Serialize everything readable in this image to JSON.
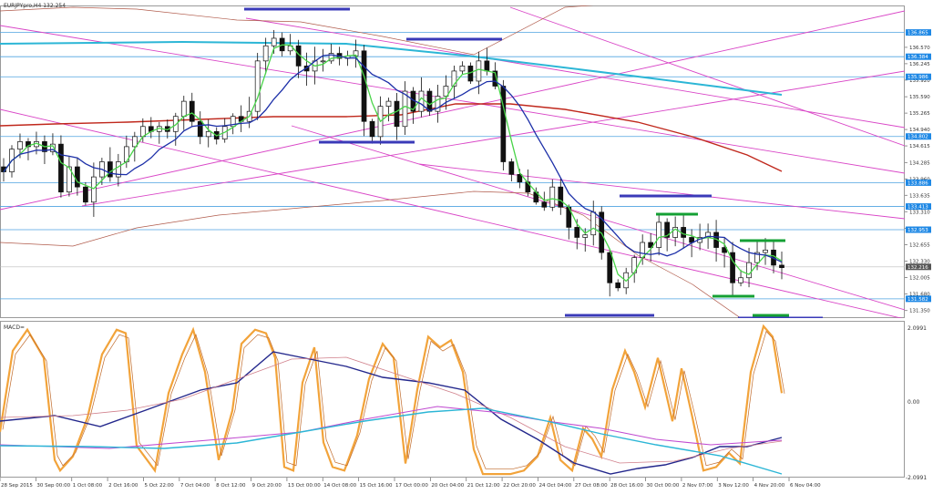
{
  "chart_data": [
    {
      "type": "candlestick",
      "title": "EURJPYpro,H4  132.254",
      "price_axis": {
        "ylim": [
          131.2,
          137.4
        ],
        "ticks": [
          "136.570",
          "136.245",
          "135.920",
          "135.590",
          "135.265",
          "134.940",
          "134.615",
          "134.285",
          "133.960",
          "133.635",
          "133.310",
          "132.980",
          "132.655",
          "132.330",
          "132.005",
          "131.680",
          "131.350"
        ]
      },
      "level_labels": [
        {
          "label": "136.865",
          "y": 136.865,
          "color": "#1e88e5"
        },
        {
          "label": "136.384",
          "y": 136.384,
          "color": "#1e88e5"
        },
        {
          "label": "135.986",
          "y": 135.986,
          "color": "#1e88e5"
        },
        {
          "label": "134.802",
          "y": 134.802,
          "color": "#1e88e5"
        },
        {
          "label": "133.886",
          "y": 133.886,
          "color": "#1e88e5"
        },
        {
          "label": "133.413",
          "y": 133.413,
          "color": "#1e88e5"
        },
        {
          "label": "132.953",
          "y": 132.953,
          "color": "#1e88e5"
        },
        {
          "label": "132.216",
          "y": 132.216,
          "color": "#555555"
        },
        {
          "label": "131.582",
          "y": 131.582,
          "color": "#1e88e5"
        }
      ],
      "time_axis": [
        "28 Sep 2015",
        "30 Sep 00:00",
        "1 Oct 08:00",
        "2 Oct 16:00",
        "5 Oct 22:00",
        "7 Oct 04:00",
        "8 Oct 12:00",
        "9 Oct 20:00",
        "13 Oct 00:00",
        "14 Oct 08:00",
        "15 Oct 16:00",
        "17 Oct 00:00",
        "20 Oct 04:00",
        "21 Oct 12:00",
        "22 Oct 20:00",
        "24 Oct 04:00",
        "27 Oct 08:00",
        "28 Oct 16:00",
        "30 Oct 00:00",
        "2 Nov 07:00",
        "3 Nov 12:00",
        "4 Nov 20:00",
        "6 Nov 04:00"
      ],
      "close_series": [
        134.1,
        134.55,
        134.7,
        134.6,
        134.7,
        134.5,
        134.65,
        133.7,
        134.2,
        133.8,
        133.5,
        134.0,
        134.3,
        134.0,
        134.3,
        134.6,
        134.8,
        135.0,
        134.9,
        135.0,
        134.9,
        135.2,
        135.5,
        135.1,
        134.8,
        134.9,
        134.75,
        135.0,
        135.2,
        135.1,
        135.3,
        136.3,
        136.6,
        136.75,
        136.5,
        136.6,
        136.2,
        136.1,
        136.3,
        136.3,
        136.45,
        136.35,
        136.4,
        136.5,
        135.1,
        134.8,
        135.4,
        135.5,
        135.0,
        135.7,
        135.3,
        135.7,
        135.3,
        135.6,
        135.8,
        136.1,
        136.2,
        135.9,
        136.3,
        136.1,
        135.8,
        134.3,
        134.05,
        133.9,
        133.7,
        133.5,
        133.4,
        133.8,
        133.4,
        133.0,
        132.8,
        132.85,
        133.3,
        132.5,
        131.9,
        131.8,
        132.1,
        132.4,
        132.7,
        132.6,
        133.1,
        132.8,
        133.0,
        132.8,
        132.7,
        132.8,
        132.9,
        132.6,
        132.5,
        131.9,
        132.0,
        132.3,
        132.5,
        132.55,
        132.25,
        132.2
      ]
    },
    {
      "type": "line",
      "title": "MACD=",
      "yticks": [
        "2.0991",
        "0.00",
        "-2.0991"
      ],
      "ylim": [
        -2.2,
        2.2
      ]
    }
  ]
}
